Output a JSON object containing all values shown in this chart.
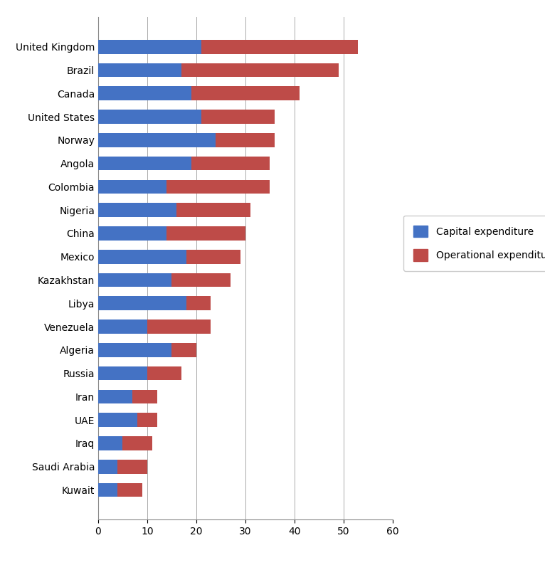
{
  "categories": [
    "United Kingdom",
    "Brazil",
    "Canada",
    "United States",
    "Norway",
    "Angola",
    "Colombia",
    "Nigeria",
    "China",
    "Mexico",
    "Kazakhstan",
    "Libya",
    "Venezuela",
    "Algeria",
    "Russia",
    "Iran",
    "UAE",
    "Iraq",
    "Saudi Arabia",
    "Kuwait"
  ],
  "capital_expenditure": [
    21,
    17,
    19,
    21,
    24,
    19,
    14,
    16,
    14,
    18,
    15,
    18,
    10,
    15,
    10,
    7,
    8,
    5,
    4,
    4
  ],
  "operational_expenditure": [
    32,
    32,
    22,
    15,
    12,
    16,
    21,
    15,
    16,
    11,
    12,
    5,
    13,
    5,
    7,
    5,
    4,
    6,
    6,
    5
  ],
  "capital_color": "#4472C4",
  "operational_color": "#BE4B48",
  "background_color": "#FFFFFF",
  "xlim": [
    0,
    60
  ],
  "xticks": [
    0,
    10,
    20,
    30,
    40,
    50,
    60
  ],
  "legend_labels": [
    "Capital expenditure",
    "Operational expenditure"
  ],
  "figsize": [
    7.66,
    7.94
  ],
  "dpi": 100,
  "bar_height": 0.6,
  "grid_color": "#AAAAAA",
  "tick_fontsize": 10,
  "legend_fontsize": 10
}
